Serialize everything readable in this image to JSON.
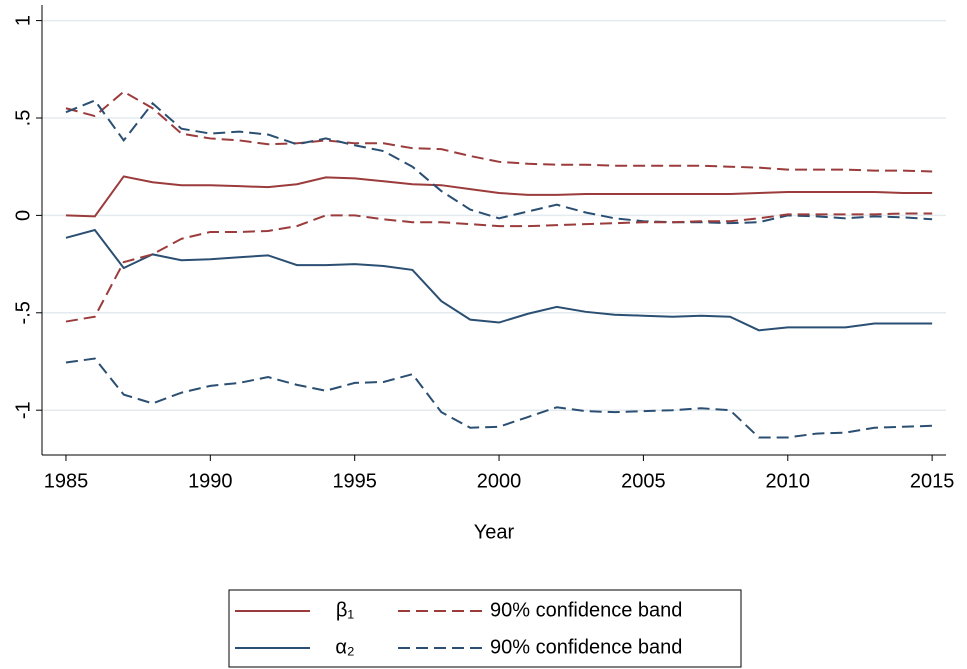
{
  "chart_data": {
    "type": "line",
    "xlabel": "Year",
    "x": [
      1985,
      1986,
      1987,
      1988,
      1989,
      1990,
      1991,
      1992,
      1993,
      1994,
      1995,
      1996,
      1997,
      1998,
      1999,
      2000,
      2001,
      2002,
      2003,
      2004,
      2005,
      2006,
      2007,
      2008,
      2009,
      2010,
      2011,
      2012,
      2013,
      2014,
      2015
    ],
    "xlim": [
      1984.17,
      2015.48
    ],
    "xticks": [
      1985,
      1990,
      1995,
      2000,
      2005,
      2010,
      2015
    ],
    "ylim": [
      -1.23,
      1.08
    ],
    "yticks": [
      {
        "value": -1,
        "label": "-1"
      },
      {
        "value": -0.5,
        "label": "-.5"
      },
      {
        "value": 0,
        "label": "0"
      },
      {
        "value": 0.5,
        "label": ".5"
      },
      {
        "value": 1,
        "label": "1"
      }
    ],
    "grid": true,
    "legend": "bottom",
    "series": [
      {
        "name": "β₁",
        "color": "#9b3b3b",
        "style": "solid",
        "values": [
          0.0,
          -0.005,
          0.2,
          0.17,
          0.155,
          0.155,
          0.15,
          0.145,
          0.16,
          0.195,
          0.19,
          0.175,
          0.16,
          0.155,
          0.135,
          0.115,
          0.105,
          0.105,
          0.11,
          0.11,
          0.11,
          0.11,
          0.11,
          0.11,
          0.115,
          0.12,
          0.12,
          0.12,
          0.12,
          0.115,
          0.115
        ]
      },
      {
        "name": "90% confidence band",
        "color": "#9b3b3b",
        "style": "dashed",
        "values": [
          0.55,
          0.51,
          0.635,
          0.55,
          0.42,
          0.395,
          0.385,
          0.365,
          0.37,
          0.385,
          0.37,
          0.37,
          0.345,
          0.34,
          0.305,
          0.275,
          0.265,
          0.26,
          0.26,
          0.255,
          0.255,
          0.255,
          0.255,
          0.25,
          0.245,
          0.235,
          0.235,
          0.235,
          0.23,
          0.23,
          0.225
        ]
      },
      {
        "name": "α₂",
        "color": "#2b4f72",
        "style": "solid",
        "values": [
          -0.115,
          -0.075,
          -0.27,
          -0.2,
          -0.23,
          -0.225,
          -0.215,
          -0.205,
          -0.255,
          -0.255,
          -0.25,
          -0.26,
          -0.28,
          -0.44,
          -0.535,
          -0.55,
          -0.505,
          -0.47,
          -0.495,
          -0.51,
          -0.515,
          -0.52,
          -0.515,
          -0.52,
          -0.59,
          -0.575,
          -0.575,
          -0.575,
          -0.555,
          -0.555,
          -0.555
        ]
      },
      {
        "name": "90% confidence band",
        "color": "#2b4f72",
        "style": "dashed",
        "values": [
          0.53,
          0.59,
          0.385,
          0.575,
          0.445,
          0.42,
          0.43,
          0.415,
          0.365,
          0.395,
          0.36,
          0.33,
          0.25,
          0.125,
          0.03,
          -0.015,
          0.02,
          0.055,
          0.015,
          -0.015,
          -0.03,
          -0.035,
          -0.035,
          -0.04,
          -0.035,
          0.0,
          -0.005,
          -0.015,
          -0.005,
          -0.01,
          -0.02
        ]
      },
      {
        "name": "90% confidence band",
        "color": "#2b4f72",
        "style": "dashed",
        "values": [
          -0.755,
          -0.735,
          -0.92,
          -0.965,
          -0.91,
          -0.875,
          -0.86,
          -0.83,
          -0.87,
          -0.9,
          -0.86,
          -0.855,
          -0.815,
          -1.01,
          -1.09,
          -1.085,
          -1.035,
          -0.985,
          -1.005,
          -1.01,
          -1.005,
          -1.0,
          -0.99,
          -1.0,
          -1.14,
          -1.14,
          -1.12,
          -1.115,
          -1.09,
          -1.085,
          -1.08
        ]
      },
      {
        "name": "90% confidence band",
        "color": "#9b3b3b",
        "style": "dashed",
        "values": [
          -0.545,
          -0.52,
          -0.24,
          -0.2,
          -0.12,
          -0.085,
          -0.085,
          -0.08,
          -0.055,
          0.0,
          0.0,
          -0.02,
          -0.035,
          -0.035,
          -0.045,
          -0.055,
          -0.055,
          -0.05,
          -0.045,
          -0.04,
          -0.035,
          -0.035,
          -0.03,
          -0.03,
          -0.015,
          0.005,
          0.005,
          0.005,
          0.005,
          0.01,
          0.01
        ]
      }
    ]
  }
}
